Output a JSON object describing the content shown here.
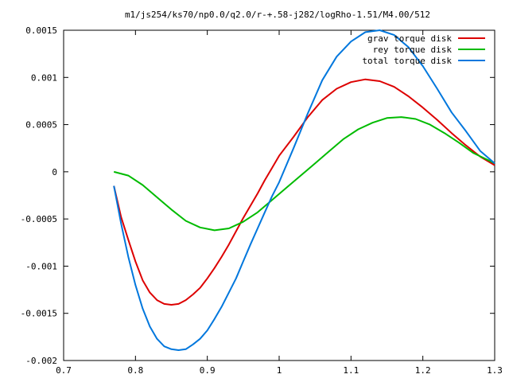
{
  "chart_data": {
    "type": "line",
    "title": "m1/js254/ks70/np0.0/q2.0/r-+.58-j282/logRho-1.51/M4.00/512",
    "xlabel": "",
    "ylabel": "",
    "xlim": [
      0.7,
      1.3
    ],
    "ylim": [
      -0.002,
      0.0015
    ],
    "x_ticks": [
      {
        "value": 0.7,
        "label": "0.7"
      },
      {
        "value": 0.8,
        "label": "0.8"
      },
      {
        "value": 0.9,
        "label": "0.9"
      },
      {
        "value": 1.0,
        "label": "1"
      },
      {
        "value": 1.1,
        "label": "1.1"
      },
      {
        "value": 1.2,
        "label": "1.2"
      },
      {
        "value": 1.3,
        "label": "1.3"
      }
    ],
    "y_ticks": [
      {
        "value": 0.0015,
        "label": "0.0015"
      },
      {
        "value": 0.001,
        "label": "0.001"
      },
      {
        "value": 0.0005,
        "label": "0.0005"
      },
      {
        "value": 0,
        "label": "0"
      },
      {
        "value": -0.0005,
        "label": "-0.0005"
      },
      {
        "value": -0.001,
        "label": "-0.001"
      },
      {
        "value": -0.0015,
        "label": "-0.0015"
      },
      {
        "value": -0.002,
        "label": "-0.002"
      }
    ],
    "grid": false,
    "legend_position": "top-right",
    "series": [
      {
        "name": "grav torque disk",
        "color": "#dd0000",
        "x": [
          0.77,
          0.78,
          0.79,
          0.8,
          0.81,
          0.82,
          0.83,
          0.84,
          0.85,
          0.86,
          0.87,
          0.88,
          0.89,
          0.9,
          0.91,
          0.92,
          0.93,
          0.94,
          0.95,
          0.96,
          0.97,
          0.98,
          0.99,
          1.0,
          1.02,
          1.04,
          1.06,
          1.08,
          1.1,
          1.12,
          1.14,
          1.16,
          1.18,
          1.2,
          1.22,
          1.24,
          1.26,
          1.28,
          1.3
        ],
        "y": [
          -0.00015,
          -0.00048,
          -0.00072,
          -0.00095,
          -0.00115,
          -0.00128,
          -0.00136,
          -0.0014,
          -0.00141,
          -0.0014,
          -0.00136,
          -0.0013,
          -0.00123,
          -0.00113,
          -0.00102,
          -0.0009,
          -0.00077,
          -0.00063,
          -0.00049,
          -0.00036,
          -0.00023,
          -9e-05,
          4e-05,
          0.00017,
          0.00037,
          0.00058,
          0.00076,
          0.00088,
          0.00095,
          0.00098,
          0.00096,
          0.0009,
          0.0008,
          0.00068,
          0.00055,
          0.00041,
          0.00028,
          0.00016,
          7e-05
        ]
      },
      {
        "name": "rey torque disk",
        "color": "#00bb00",
        "x": [
          0.77,
          0.79,
          0.81,
          0.83,
          0.85,
          0.87,
          0.89,
          0.91,
          0.93,
          0.95,
          0.97,
          0.99,
          1.01,
          1.03,
          1.05,
          1.07,
          1.09,
          1.11,
          1.13,
          1.15,
          1.17,
          1.19,
          1.21,
          1.23,
          1.25,
          1.27,
          1.3
        ],
        "y": [
          0.0,
          -4e-05,
          -0.00014,
          -0.00027,
          -0.0004,
          -0.00052,
          -0.00059,
          -0.00062,
          -0.0006,
          -0.00053,
          -0.00043,
          -0.0003,
          -0.00017,
          -4e-05,
          9e-05,
          0.00022,
          0.00035,
          0.00045,
          0.00052,
          0.00057,
          0.00058,
          0.00056,
          0.0005,
          0.00041,
          0.00031,
          0.0002,
          9e-05
        ]
      },
      {
        "name": "total torque disk",
        "color": "#0077dd",
        "x": [
          0.77,
          0.78,
          0.79,
          0.8,
          0.81,
          0.82,
          0.83,
          0.84,
          0.85,
          0.86,
          0.87,
          0.88,
          0.89,
          0.9,
          0.91,
          0.92,
          0.93,
          0.94,
          0.95,
          0.96,
          0.97,
          0.98,
          0.99,
          1.0,
          1.02,
          1.04,
          1.06,
          1.08,
          1.1,
          1.12,
          1.14,
          1.16,
          1.18,
          1.2,
          1.22,
          1.24,
          1.26,
          1.28,
          1.3
        ],
        "y": [
          -0.00015,
          -0.00055,
          -0.0009,
          -0.0012,
          -0.00145,
          -0.00164,
          -0.00177,
          -0.00185,
          -0.00188,
          -0.00189,
          -0.00188,
          -0.00183,
          -0.00177,
          -0.00168,
          -0.00156,
          -0.00143,
          -0.00128,
          -0.00113,
          -0.00095,
          -0.00077,
          -0.0006,
          -0.00043,
          -0.00026,
          -0.00011,
          0.00025,
          0.00062,
          0.00097,
          0.00122,
          0.00138,
          0.00148,
          0.0015,
          0.00145,
          0.00132,
          0.00112,
          0.00088,
          0.00063,
          0.00043,
          0.00022,
          9e-05
        ]
      }
    ]
  }
}
